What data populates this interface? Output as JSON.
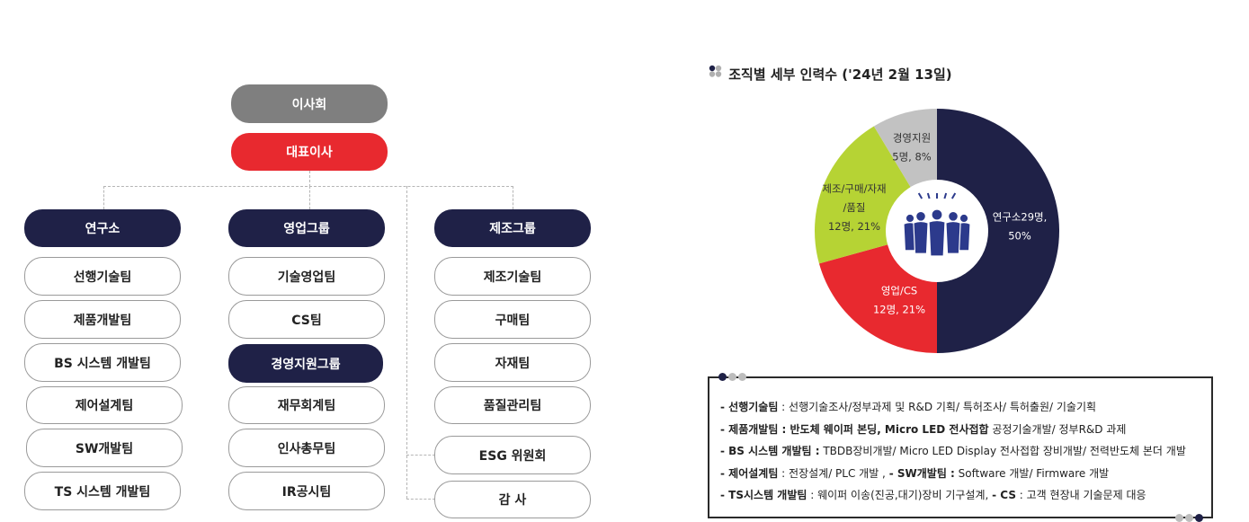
{
  "org": {
    "board": "이사회",
    "ceo": "대표이사",
    "columns": [
      {
        "head": "연구소",
        "items": [
          "선행기술팀",
          "제품개발팀",
          "BS 시스템 개발팀",
          "제어설계팀",
          "SW개발팀",
          "TS 시스템 개발팀"
        ]
      },
      {
        "head": "영업그룹",
        "items": [
          "기술영업팀",
          "CS팀"
        ],
        "subhead": "경영지원그룹",
        "subitems": [
          "재무회계팀",
          "인사총무팀",
          "IR공시팀"
        ]
      },
      {
        "head": "제조그룹",
        "items": [
          "제조기술팀",
          "구매팀",
          "자재팀",
          "품질관리팀"
        ]
      }
    ],
    "committee": "ESG 위원회",
    "audit": "감 사"
  },
  "chart_title": "조직별 세부 인력수 ('24년 2월 13일)",
  "chart_data": {
    "type": "pie",
    "title": "조직별 세부 인력수 ('24년 2월 13일)",
    "slices": [
      {
        "name": "연구소",
        "value": 29,
        "percent": 50,
        "color": "#1f2147",
        "label_lines": [
          "연구소29명,",
          "50%"
        ]
      },
      {
        "name": "영업/CS",
        "value": 12,
        "percent": 21,
        "color": "#e8292f",
        "label_lines": [
          "영업/CS",
          "12명, 21%"
        ]
      },
      {
        "name": "제조/구매/자재/품질",
        "value": 12,
        "percent": 21,
        "color": "#b6d334",
        "label_lines": [
          "제조/구매/자재",
          "/품질",
          "12명, 21%"
        ]
      },
      {
        "name": "경영지원",
        "value": 5,
        "percent": 8,
        "color": "#c2c2c2",
        "label_lines": [
          "경영지원",
          "5명, 8%"
        ]
      }
    ],
    "center_icon": "team-people-icon"
  },
  "notes": [
    [
      {
        "b": "- 선행기술팀"
      },
      {
        "t": " : 선행기술조사/정부과제 및 R&D 기획/ 특허조사/ 특허출원/ 기술기획"
      }
    ],
    [
      {
        "b": "- 제품개발팀 : 반도체 웨이퍼 본딩, Micro LED 전사접합"
      },
      {
        "t": " 공정기술개발/ 정부R&D 과제"
      }
    ],
    [
      {
        "b": "- BS 시스템 개발팀 :"
      },
      {
        "t": " TBDB장비개발/ Micro LED Display 전사접합 장비개발/ 전력반도체 본더 개발"
      }
    ],
    [
      {
        "b": "- 제어설계팀"
      },
      {
        "t": " : 전장설계/ PLC 개발 ,  "
      },
      {
        "b": "- SW개발팀 :"
      },
      {
        "t": " Software 개발/ Firmware 개발"
      }
    ],
    [
      {
        "b": "- TS시스템 개발팀"
      },
      {
        "t": " : 웨이퍼 이송(진공,대기)장비 기구설계,  "
      },
      {
        "b": "- CS"
      },
      {
        "t": "  : 고객 현장내 기술문제 대응"
      }
    ]
  ],
  "colors": {
    "navy": "#1f2147",
    "red": "#e8292f",
    "gray": "#7f7f7f",
    "lime": "#b6d334",
    "lightgray": "#c2c2c2"
  }
}
